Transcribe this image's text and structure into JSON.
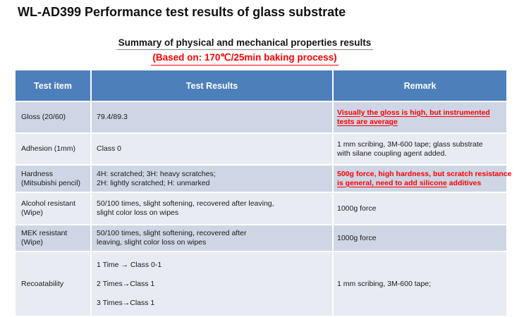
{
  "page": {
    "title": "WL-AD399 Performance test results of glass substrate",
    "subtitle": "Summary of physical and mechanical properties results",
    "baking_note": "(Based on: 170℃/25min baking process)"
  },
  "colors": {
    "header_bg": "#4d7fbb",
    "band_dark": "#ced5e4",
    "band_light": "#e9ebf3",
    "red_text": "#ff0000"
  },
  "table": {
    "headers": [
      "Test item",
      "Test Results",
      "Remark"
    ],
    "rows": [
      {
        "item": [
          "Gloss (20/60)"
        ],
        "result": [
          "79.4/89.3"
        ],
        "remark": [
          "Visually the gloss is high, but instrumented",
          "tests are average"
        ]
      },
      {
        "item": [
          "Adhesion (1mm)"
        ],
        "result": [
          "Class 0"
        ],
        "remark": [
          "1 mm scribing, 3M-600 tape; glass substrate",
          "with silane coupling agent added."
        ]
      },
      {
        "item": [
          "Hardness",
          "(Mitsubishi pencil)"
        ],
        "result": [
          "4H: scratched; 3H: heavy scratches;",
          "2H: lightly scratched; H: unmarked"
        ],
        "remark_line1": "500g force, high hardness, but scratch resistance",
        "remark_line2_underlined": "is general, need to add silicone",
        "remark_line2_rest": " additives"
      },
      {
        "item": [
          "Alcohol resistant",
          "(Wipe)"
        ],
        "result": [
          "50/100 times, slight softening, recovered after leaving,",
          "slight color loss on wipes"
        ],
        "remark": [
          "1000g force"
        ]
      },
      {
        "item": [
          "MEK resistant",
          "(Wipe)"
        ],
        "result": [
          "50/100 times, slight softening, recovered after",
          "leaving, slight color loss on wipes"
        ],
        "remark": [
          "1000g force"
        ]
      },
      {
        "item": [
          "Recoatability"
        ],
        "result": [
          "1 Time → Class 0-1",
          "2 Times→Class 1",
          "3 Times→Class 1"
        ],
        "remark": [
          "1 mm scribing, 3M-600 tape;"
        ]
      }
    ]
  }
}
